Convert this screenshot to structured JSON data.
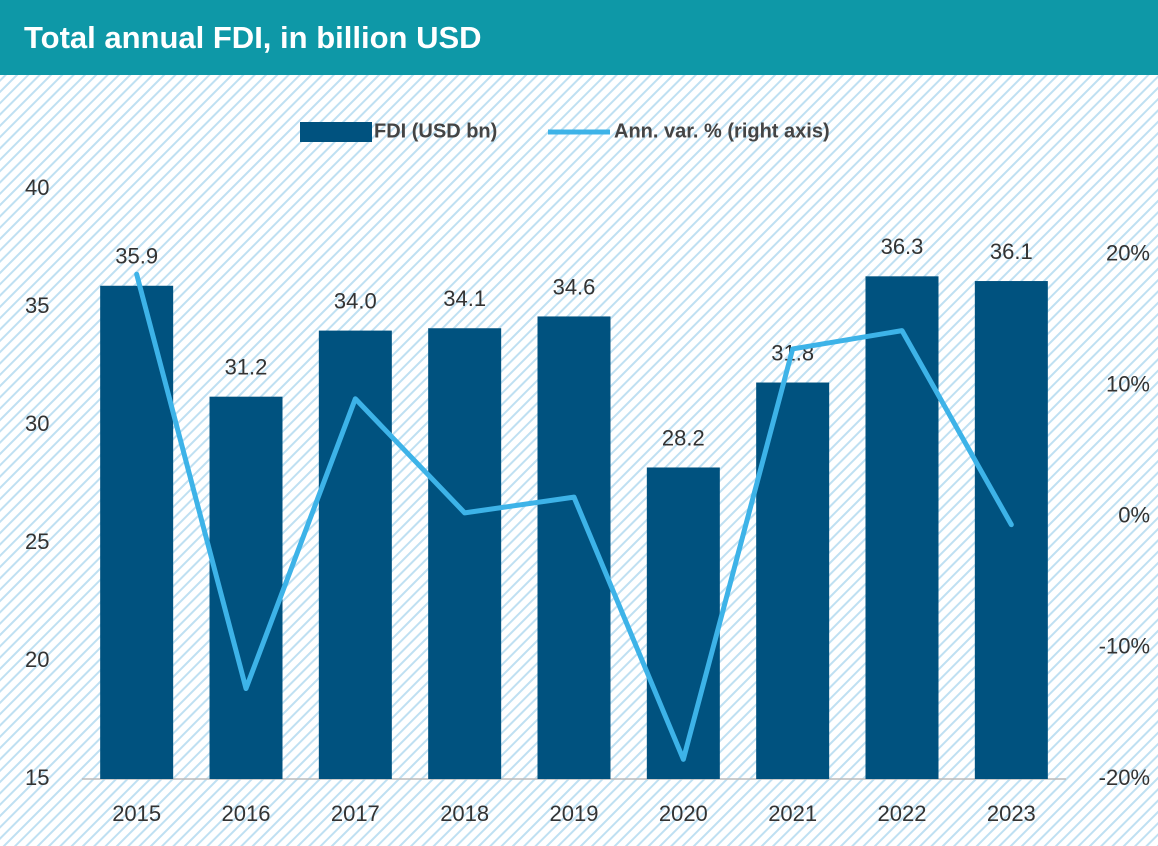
{
  "chart_data": {
    "type": "bar",
    "title": "Total annual FDI, in billion USD",
    "categories": [
      "2015",
      "2016",
      "2017",
      "2018",
      "2019",
      "2020",
      "2021",
      "2022",
      "2023"
    ],
    "series": [
      {
        "name": "FDI (USD bn)",
        "type": "bar",
        "color": "#00527f",
        "values": [
          35.9,
          31.2,
          34.0,
          34.1,
          34.6,
          28.2,
          31.8,
          36.3,
          36.1
        ],
        "value_labels": [
          "35.9",
          "31.2",
          "34.0",
          "34.1",
          "34.6",
          "28.2",
          "31.8",
          "36.3",
          "36.1"
        ]
      },
      {
        "name": "Ann. var. % (right axis)",
        "type": "line",
        "color": "#3db3e8",
        "axis": "y2",
        "values": [
          18.5,
          -13.1,
          9.0,
          0.3,
          1.5,
          -18.5,
          12.8,
          14.2,
          -0.6
        ]
      }
    ],
    "ylim": [
      15,
      40
    ],
    "yticks": [
      15,
      20,
      25,
      30,
      35,
      40
    ],
    "y2lim": [
      -20,
      25
    ],
    "y2ticks": [
      {
        "value": -20,
        "label": "-20%"
      },
      {
        "value": -10,
        "label": "-10%"
      },
      {
        "value": 0,
        "label": "0%"
      },
      {
        "value": 10,
        "label": "10%"
      },
      {
        "value": 20,
        "label": "20%"
      }
    ],
    "legend": "top"
  }
}
